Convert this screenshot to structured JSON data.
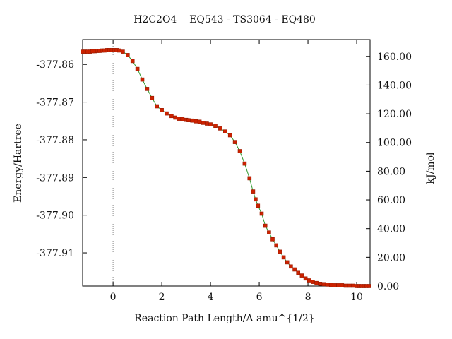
{
  "chart_data": {
    "type": "line",
    "title": "H2C2O4    EQ543 - TS3064 - EQ480",
    "xlabel": "Reaction Path Length/A amu^{1/2}",
    "ylabel": "Energy/Hartree",
    "y2label": "kJ/mol",
    "xlim": [
      -1.25,
      10.55
    ],
    "ylim": [
      -377.9188,
      -377.8534
    ],
    "y2lim": [
      0,
      171.7
    ],
    "x_ticks": [
      "0",
      "2",
      "4",
      "6",
      "8",
      "10"
    ],
    "y_ticks": [
      "-377.86",
      "-377.87",
      "-377.88",
      "-377.89",
      "-377.90",
      "-377.91"
    ],
    "y2_ticks": [
      "0.00",
      "20.00",
      "40.00",
      "60.00",
      "80.00",
      "100.00",
      "120.00",
      "140.00",
      "160.00"
    ],
    "ts_marker_x": 0,
    "grid": false,
    "line_color": "#2e9a2e",
    "marker_color": "#cc2200",
    "series": [
      {
        "x": [
          -1.25,
          -1.15,
          -1.05,
          -0.95,
          -0.85,
          -0.75,
          -0.65,
          -0.55,
          -0.45,
          -0.35,
          -0.25,
          -0.15,
          -0.05,
          0.05,
          0.15,
          0.25,
          0.4,
          0.6,
          0.8,
          1.0,
          1.2,
          1.4,
          1.6,
          1.8,
          2.0,
          2.2,
          2.4,
          2.55,
          2.7,
          2.85,
          3.0,
          3.1,
          3.25,
          3.4,
          3.55,
          3.7,
          3.85,
          4.0,
          4.2,
          4.4,
          4.6,
          4.8,
          5.0,
          5.2,
          5.4,
          5.6,
          5.75,
          5.85,
          5.95,
          6.1,
          6.25,
          6.4,
          6.55,
          6.7,
          6.85,
          7.0,
          7.15,
          7.3,
          7.45,
          7.6,
          7.75,
          7.9,
          8.05,
          8.2,
          8.35,
          8.5,
          8.65,
          8.8,
          8.95,
          9.1,
          9.25,
          9.4,
          9.55,
          9.7,
          9.85,
          10.0,
          10.1,
          10.2,
          10.3,
          10.4,
          10.5
        ],
        "y": [
          -377.8566,
          -377.8566,
          -377.8566,
          -377.8566,
          -377.8565,
          -377.8565,
          -377.8564,
          -377.8564,
          -377.8563,
          -377.8563,
          -377.8562,
          -377.8562,
          -377.8562,
          -377.8562,
          -377.8562,
          -377.8563,
          -377.8566,
          -377.8575,
          -377.8591,
          -377.8612,
          -377.864,
          -377.8665,
          -377.8689,
          -377.8711,
          -377.8721,
          -377.873,
          -377.8737,
          -377.8741,
          -377.8744,
          -377.8745,
          -377.8747,
          -377.8748,
          -377.8749,
          -377.8751,
          -377.8752,
          -377.8755,
          -377.8757,
          -377.8759,
          -377.8763,
          -377.877,
          -377.8778,
          -377.8788,
          -377.8806,
          -377.883,
          -377.8863,
          -377.8902,
          -377.8937,
          -377.8958,
          -377.8975,
          -377.8996,
          -377.9028,
          -377.9046,
          -377.9064,
          -377.908,
          -377.9097,
          -377.9112,
          -377.9125,
          -377.9136,
          -377.9144,
          -377.9153,
          -377.916,
          -377.9168,
          -377.9173,
          -377.9177,
          -377.918,
          -377.9182,
          -377.9183,
          -377.9184,
          -377.9185,
          -377.9186,
          -377.9186,
          -377.9186,
          -377.9187,
          -377.9187,
          -377.9187,
          -377.9188,
          -377.9188,
          -377.9188,
          -377.9188,
          -377.9188,
          -377.9188
        ]
      }
    ]
  }
}
